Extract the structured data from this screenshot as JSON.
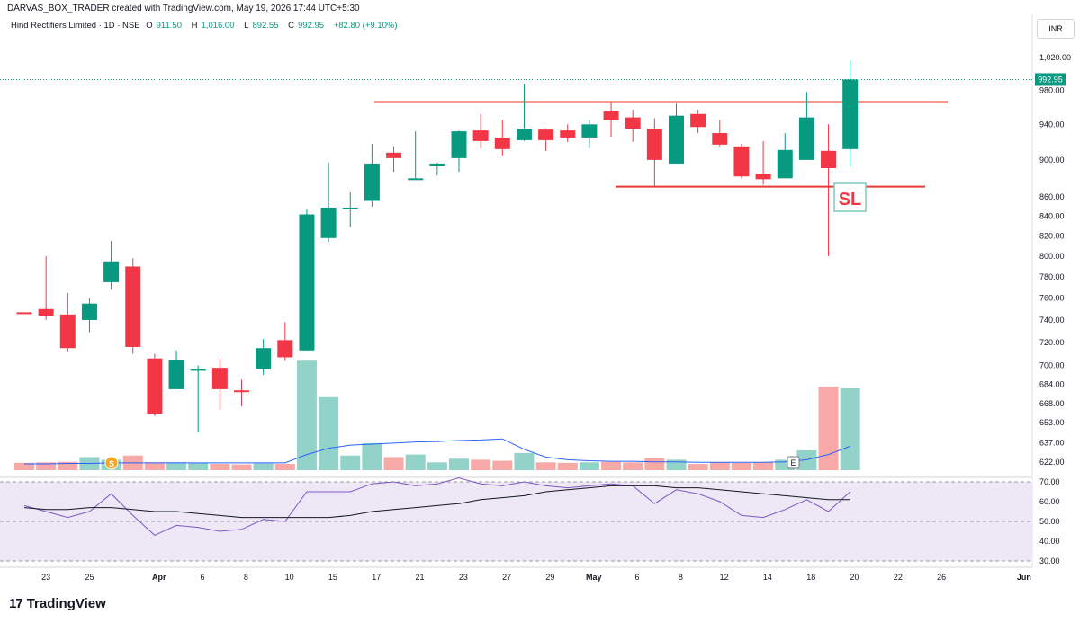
{
  "header": {
    "byline": "DARVAS_BOX_TRADER created with TradingView.com, May 19, 2026 17:44 UTC+5:30"
  },
  "legend": {
    "symbol": "Hind Rectifiers Limited · 1D · NSE",
    "o_label": "O",
    "o_value": "911.50",
    "h_label": "H",
    "h_value": "1,016.00",
    "l_label": "L",
    "l_value": "892.55",
    "c_label": "C",
    "c_value": "992.95",
    "change": "+82.80 (+9.10%)"
  },
  "currency_button": "INR",
  "last_price_label": "992.95",
  "sl_label": "SL",
  "logo_text": "TradingView",
  "markers": {
    "split": "S",
    "earnings": "E"
  },
  "colors": {
    "up": "#089981",
    "down": "#f23645",
    "volume_up": "#92d2c9",
    "volume_down": "#f7a9a7",
    "volume_ma": "#2962ff",
    "rsi": "#7e57c2",
    "rsi_ma": "#131722",
    "level_line": "#e53935",
    "rsi_band": "#ede7f6"
  },
  "chart_data": [
    {
      "type": "candlestick",
      "y_axis": {
        "ticks": [
          "1,020.00",
          "980.00",
          "940.00",
          "900.00",
          "860.00",
          "840.00",
          "820.00",
          "800.00",
          "780.00",
          "760.00",
          "740.00",
          "720.00",
          "700.00",
          "684.00",
          "668.00",
          "653.00",
          "637.00",
          "622.00"
        ],
        "scale": "log"
      },
      "x_axis": {
        "ticks": [
          "23",
          "25",
          "Apr",
          "6",
          "8",
          "10",
          "15",
          "17",
          "21",
          "23",
          "27",
          "29",
          "May",
          "6",
          "8",
          "12",
          "14",
          "18",
          "20",
          "22",
          "26",
          "Jun"
        ]
      },
      "candles": [
        {
          "o": 747,
          "h": 747,
          "l": 746,
          "c": 746
        },
        {
          "o": 750,
          "h": 800,
          "l": 740,
          "c": 744
        },
        {
          "o": 745,
          "h": 765,
          "l": 712,
          "c": 715
        },
        {
          "o": 740,
          "h": 760,
          "l": 729,
          "c": 755
        },
        {
          "o": 775,
          "h": 815,
          "l": 768,
          "c": 795
        },
        {
          "o": 790,
          "h": 798,
          "l": 710,
          "c": 716
        },
        {
          "o": 706,
          "h": 710,
          "l": 658,
          "c": 660
        },
        {
          "o": 680,
          "h": 713,
          "l": 680,
          "c": 705
        },
        {
          "o": 696,
          "h": 700,
          "l": 645,
          "c": 697
        },
        {
          "o": 698,
          "h": 706,
          "l": 663,
          "c": 680
        },
        {
          "o": 679,
          "h": 688,
          "l": 666,
          "c": 678
        },
        {
          "o": 697,
          "h": 723,
          "l": 692,
          "c": 715
        },
        {
          "o": 722,
          "h": 738,
          "l": 704,
          "c": 707
        },
        {
          "o": 713,
          "h": 847,
          "l": 713,
          "c": 842
        },
        {
          "o": 818,
          "h": 897,
          "l": 814,
          "c": 849
        },
        {
          "o": 849,
          "h": 865,
          "l": 829,
          "c": 849
        },
        {
          "o": 856,
          "h": 918,
          "l": 850,
          "c": 896
        },
        {
          "o": 908,
          "h": 915,
          "l": 887,
          "c": 902
        },
        {
          "o": 880,
          "h": 932,
          "l": 880,
          "c": 880
        },
        {
          "o": 893,
          "h": 897,
          "l": 883,
          "c": 896
        },
        {
          "o": 902,
          "h": 933,
          "l": 887,
          "c": 932
        },
        {
          "o": 933,
          "h": 952,
          "l": 913,
          "c": 921
        },
        {
          "o": 925,
          "h": 945,
          "l": 905,
          "c": 912
        },
        {
          "o": 922,
          "h": 988,
          "l": 921,
          "c": 935
        },
        {
          "o": 934,
          "h": 935,
          "l": 910,
          "c": 922
        },
        {
          "o": 933,
          "h": 940,
          "l": 920,
          "c": 925
        },
        {
          "o": 925,
          "h": 945,
          "l": 913,
          "c": 940
        },
        {
          "o": 955,
          "h": 966,
          "l": 926,
          "c": 945
        },
        {
          "o": 948,
          "h": 957,
          "l": 920,
          "c": 935
        },
        {
          "o": 935,
          "h": 947,
          "l": 871,
          "c": 900
        },
        {
          "o": 896,
          "h": 964,
          "l": 896,
          "c": 950
        },
        {
          "o": 952,
          "h": 957,
          "l": 930,
          "c": 937
        },
        {
          "o": 930,
          "h": 945,
          "l": 915,
          "c": 917
        },
        {
          "o": 915,
          "h": 918,
          "l": 880,
          "c": 882
        },
        {
          "o": 885,
          "h": 921,
          "l": 873,
          "c": 879
        },
        {
          "o": 880,
          "h": 930,
          "l": 880,
          "c": 911
        },
        {
          "o": 900,
          "h": 978,
          "l": 900,
          "c": 948
        },
        {
          "o": 910,
          "h": 940,
          "l": 800,
          "c": 891
        },
        {
          "o": 912,
          "h": 1016,
          "l": 893,
          "c": 993
        }
      ],
      "levels": [
        {
          "name": "box-top",
          "value": 966
        },
        {
          "name": "stop-loss",
          "value": 871
        }
      ],
      "last_price": 992.95
    },
    {
      "type": "bar",
      "series": [
        {
          "values": [
            14,
            15,
            16,
            25,
            20,
            28,
            15,
            15,
            14,
            12,
            11,
            13,
            12,
            210,
            140,
            28,
            52,
            25,
            30,
            15,
            22,
            20,
            18,
            33,
            15,
            14,
            15,
            16,
            15,
            23,
            20,
            12,
            15,
            14,
            15,
            20,
            38,
            160,
            157
          ]
        }
      ],
      "ma": [
        12,
        12,
        13,
        13,
        14,
        14,
        14,
        14,
        14,
        14,
        14,
        14,
        14,
        30,
        42,
        48,
        50,
        52,
        54,
        55,
        57,
        58,
        60,
        40,
        25,
        20,
        18,
        17,
        17,
        16,
        16,
        15,
        15,
        15,
        15,
        16,
        20,
        30,
        46
      ]
    },
    {
      "type": "line",
      "y_axis": {
        "ticks": [
          "70.00",
          "60.00",
          "50.00",
          "40.00",
          "30.00"
        ],
        "range": [
          30,
          72
        ]
      },
      "series": [
        {
          "values": [
            58,
            55,
            52,
            55,
            64,
            53,
            43,
            48,
            47,
            45,
            46,
            51,
            50,
            65,
            65,
            65,
            69,
            70,
            68,
            69,
            72,
            69,
            68,
            70,
            68,
            67,
            68,
            69,
            68,
            59,
            66,
            64,
            60,
            53,
            52,
            56,
            61,
            55,
            65
          ]
        },
        {
          "values": [
            57,
            56,
            56,
            57,
            57,
            56,
            55,
            55,
            54,
            53,
            52,
            52,
            52,
            52,
            52,
            53,
            55,
            56,
            57,
            58,
            59,
            61,
            62,
            63,
            65,
            66,
            67,
            68,
            68,
            68,
            67,
            67,
            66,
            65,
            64,
            63,
            62,
            61,
            61
          ]
        }
      ]
    }
  ]
}
